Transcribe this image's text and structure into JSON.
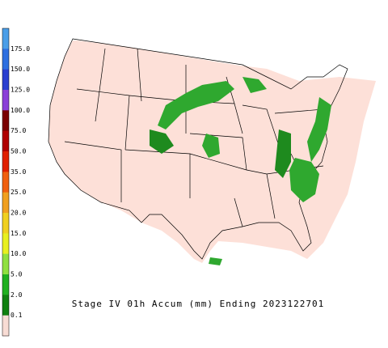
{
  "legend": {
    "labels": [
      "175.0",
      "150.0",
      "125.0",
      "100.0",
      "75.0",
      "50.0",
      "35.0",
      "25.0",
      "20.0",
      "15.0",
      "10.0",
      "5.0",
      "2.0",
      "0.1"
    ],
    "colors": [
      "#4a9ee8",
      "#2e6fe0",
      "#2a3fd0",
      "#8a3fd8",
      "#7a0000",
      "#b00000",
      "#e02000",
      "#f06010",
      "#f0a020",
      "#f0d020",
      "#e8f020",
      "#90e040",
      "#20b020",
      "#108010",
      "#f8dcd4"
    ]
  },
  "caption": "Stage IV 01h Accum (mm) Ending 2023122701"
}
